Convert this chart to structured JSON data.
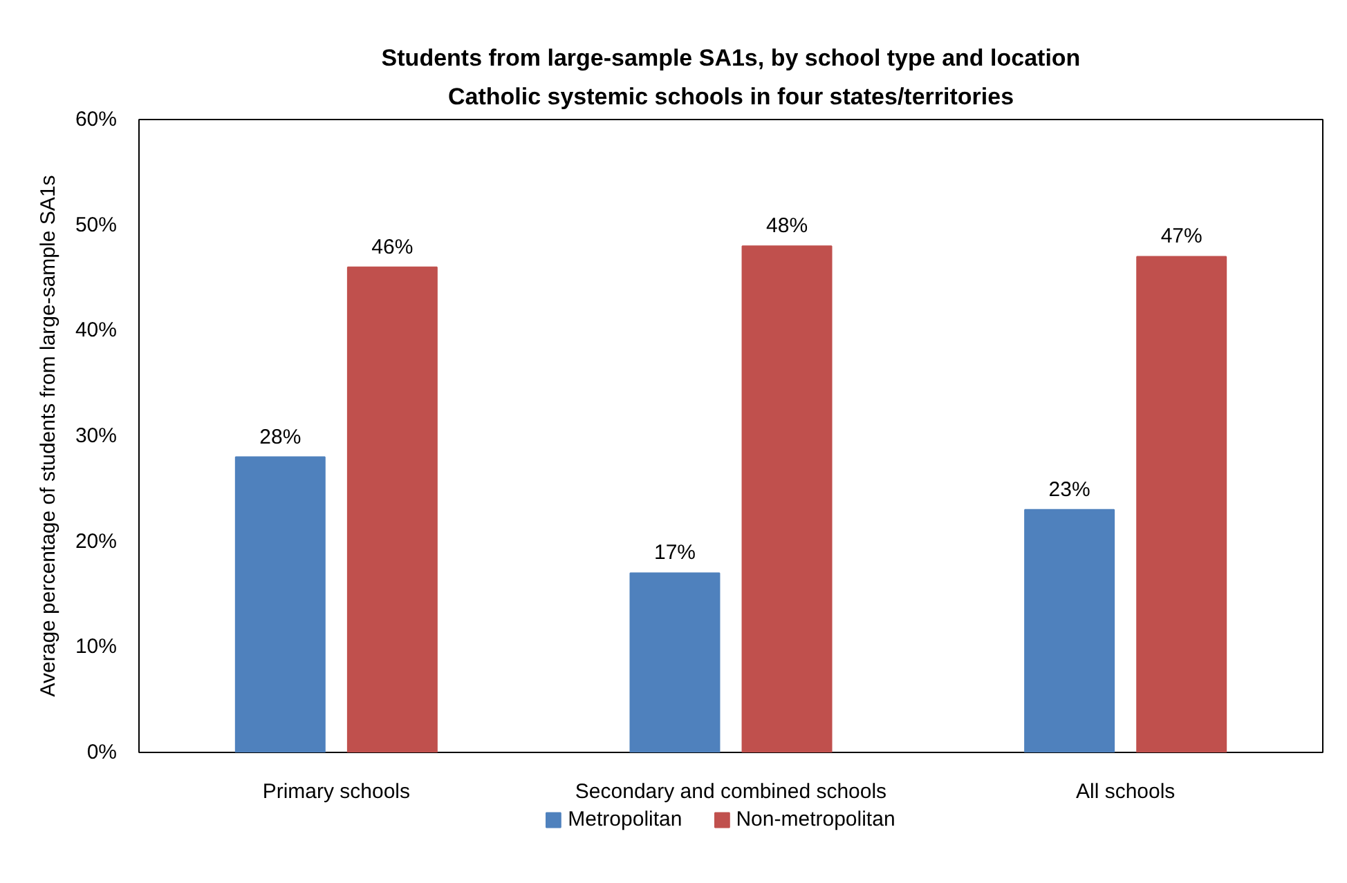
{
  "chart_data": {
    "type": "bar",
    "title": "Students from large-sample SA1s, by school type and location",
    "subtitle": "Catholic systemic schools in four states/territories",
    "ylabel": "Average percentage of students from large-sample SA1s",
    "categories": [
      "Primary schools",
      "Secondary and combined schools",
      "All schools"
    ],
    "series": [
      {
        "name": "Metropolitan",
        "color": "#4f81bd",
        "values": [
          28,
          17,
          23
        ],
        "value_labels": [
          "28%",
          "17%",
          "23%"
        ]
      },
      {
        "name": "Non-metropolitan",
        "color": "#c0504d",
        "values": [
          46,
          48,
          47
        ],
        "value_labels": [
          "46%",
          "48%",
          "47%"
        ]
      }
    ],
    "ylim": [
      0,
      60
    ],
    "yticks": [
      {
        "value": 0,
        "label": "0%"
      },
      {
        "value": 10,
        "label": "10%"
      },
      {
        "value": 20,
        "label": "20%"
      },
      {
        "value": 30,
        "label": "30%"
      },
      {
        "value": 40,
        "label": "40%"
      },
      {
        "value": 50,
        "label": "50%"
      },
      {
        "value": 60,
        "label": "60%"
      }
    ],
    "legend": "bottom"
  }
}
